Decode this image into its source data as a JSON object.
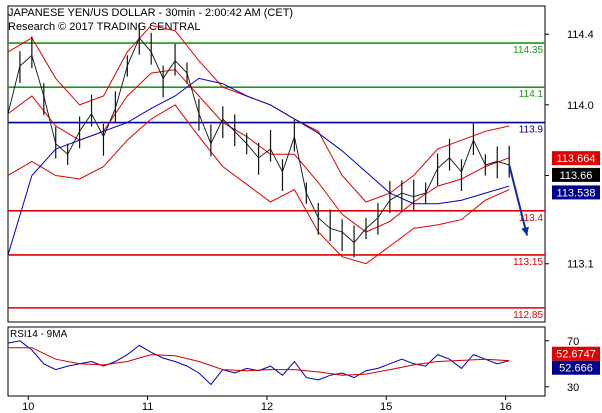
{
  "header": {
    "title": "JAPANESE YEN/US DOLLAR - 30min - 2:00:42 AM (CET)",
    "copyright": "Research © 2017 TRADING CENTRAL"
  },
  "colors": {
    "green": "#1a9a1a",
    "red": "#e00000",
    "blue": "#00008b",
    "price": "#111111",
    "band": "#e00000",
    "ma": "#0000c8",
    "rsi": "#0000b4",
    "rsi_ma": "#d00000",
    "arrow": "#0a2aa8"
  },
  "chart_data": [
    {
      "type": "line",
      "title": "",
      "description_labels": {
        "price_tag_red": "113.664",
        "price_tag_black": "113.66",
        "price_tag_blue": "113.538"
      },
      "x_ticks": [
        {
          "label": "10",
          "x": 0.17
        },
        {
          "label": "11",
          "x": 1.17
        },
        {
          "label": "12",
          "x": 2.17
        },
        {
          "label": "15",
          "x": 3.17
        },
        {
          "label": "16",
          "x": 4.17
        }
      ],
      "x_range": [
        0.0,
        4.5
      ],
      "y_ticks": [
        "114.4",
        "114.0",
        "113.6",
        "113.1"
      ],
      "y_tick_values": [
        114.4,
        114.0,
        113.6,
        113.1
      ],
      "ylim": [
        112.77,
        114.56
      ],
      "horizontal_levels": [
        {
          "label": "114.35",
          "value": 114.35,
          "color": "green"
        },
        {
          "label": "114.1",
          "value": 114.1,
          "color": "green"
        },
        {
          "label": "113.9",
          "value": 113.9,
          "color": "blue"
        },
        {
          "label": "113.4",
          "value": 113.4,
          "color": "red"
        },
        {
          "label": "113.15",
          "value": 113.15,
          "color": "red"
        },
        {
          "label": "112.85",
          "value": 112.85,
          "color": "red"
        }
      ],
      "series": [
        {
          "name": "price",
          "x": [
            0.0,
            0.1,
            0.2,
            0.3,
            0.4,
            0.5,
            0.6,
            0.7,
            0.8,
            0.9,
            1.0,
            1.1,
            1.2,
            1.3,
            1.4,
            1.5,
            1.6,
            1.7,
            1.8,
            1.9,
            2.0,
            2.1,
            2.2,
            2.3,
            2.4,
            2.5,
            2.6,
            2.7,
            2.8,
            2.9,
            3.0,
            3.1,
            3.2,
            3.3,
            3.4,
            3.5,
            3.6,
            3.7,
            3.8,
            3.9,
            4.0,
            4.1,
            4.2
          ],
          "values": [
            113.95,
            114.22,
            114.28,
            114.05,
            113.78,
            113.72,
            113.85,
            113.95,
            113.82,
            113.98,
            114.22,
            114.38,
            114.3,
            114.15,
            114.25,
            114.18,
            113.95,
            113.78,
            113.92,
            113.85,
            113.78,
            113.7,
            113.75,
            113.62,
            113.82,
            113.5,
            113.36,
            113.3,
            113.28,
            113.22,
            113.3,
            113.36,
            113.46,
            113.5,
            113.48,
            113.5,
            113.64,
            113.7,
            113.62,
            113.8,
            113.66,
            113.68,
            113.66
          ]
        },
        {
          "name": "upper_band",
          "x": [
            0.0,
            0.2,
            0.4,
            0.6,
            0.8,
            1.0,
            1.2,
            1.4,
            1.6,
            1.8,
            2.0,
            2.2,
            2.4,
            2.6,
            2.8,
            3.0,
            3.2,
            3.4,
            3.6,
            3.8,
            4.0,
            4.2
          ],
          "values": [
            114.3,
            114.38,
            114.15,
            114.0,
            114.05,
            114.3,
            114.45,
            114.42,
            114.25,
            114.1,
            114.05,
            114.0,
            113.92,
            113.85,
            113.6,
            113.45,
            113.5,
            113.6,
            113.75,
            113.8,
            113.85,
            113.88
          ]
        },
        {
          "name": "lower_band",
          "x": [
            0.0,
            0.2,
            0.4,
            0.6,
            0.8,
            1.0,
            1.2,
            1.4,
            1.6,
            1.8,
            2.0,
            2.2,
            2.4,
            2.6,
            2.8,
            3.0,
            3.2,
            3.4,
            3.6,
            3.8,
            4.0,
            4.2
          ],
          "values": [
            113.6,
            113.68,
            113.6,
            113.58,
            113.65,
            113.8,
            113.92,
            114.0,
            113.82,
            113.65,
            113.55,
            113.45,
            113.52,
            113.28,
            113.14,
            113.1,
            113.2,
            113.3,
            113.32,
            113.35,
            113.46,
            113.52
          ]
        },
        {
          "name": "middle_band",
          "x": [
            0.0,
            0.2,
            0.4,
            0.6,
            0.8,
            1.0,
            1.2,
            1.4,
            1.6,
            1.8,
            2.0,
            2.2,
            2.4,
            2.6,
            2.8,
            3.0,
            3.2,
            3.4,
            3.6,
            3.8,
            4.0,
            4.2
          ],
          "values": [
            113.95,
            114.05,
            113.88,
            113.8,
            113.85,
            114.05,
            114.18,
            114.2,
            114.05,
            113.9,
            113.82,
            113.72,
            113.72,
            113.56,
            113.38,
            113.28,
            113.34,
            113.45,
            113.54,
            113.58,
            113.65,
            113.7
          ]
        },
        {
          "name": "moving_average",
          "x": [
            0.0,
            0.2,
            0.4,
            0.6,
            0.8,
            1.0,
            1.2,
            1.4,
            1.6,
            1.8,
            2.0,
            2.2,
            2.4,
            2.6,
            2.8,
            3.0,
            3.2,
            3.4,
            3.6,
            3.8,
            4.0,
            4.2
          ],
          "values": [
            113.15,
            113.6,
            113.75,
            113.8,
            113.85,
            113.9,
            113.98,
            114.05,
            114.15,
            114.12,
            114.05,
            114.0,
            113.92,
            113.84,
            113.74,
            113.62,
            113.5,
            113.44,
            113.44,
            113.46,
            113.5,
            113.54
          ]
        }
      ],
      "arrow": {
        "from": [
          4.2,
          113.66
        ],
        "to": [
          4.35,
          113.26
        ]
      }
    },
    {
      "type": "line",
      "panel_label": "RSI14 - 9MA",
      "y_ticks": [
        "70",
        "30"
      ],
      "y_tick_values": [
        70,
        30
      ],
      "ylim": [
        22,
        82
      ],
      "value_tags": [
        {
          "label": "52.6747",
          "color": "red"
        },
        {
          "label": "52.666",
          "color": "blue"
        }
      ],
      "series": [
        {
          "name": "RSI14",
          "x": [
            0.0,
            0.1,
            0.2,
            0.3,
            0.4,
            0.5,
            0.6,
            0.7,
            0.8,
            0.9,
            1.0,
            1.1,
            1.2,
            1.3,
            1.4,
            1.5,
            1.6,
            1.7,
            1.8,
            1.9,
            2.0,
            2.1,
            2.2,
            2.3,
            2.4,
            2.5,
            2.6,
            2.7,
            2.8,
            2.9,
            3.0,
            3.1,
            3.2,
            3.3,
            3.4,
            3.5,
            3.6,
            3.7,
            3.8,
            3.9,
            4.0,
            4.1,
            4.2
          ],
          "values": [
            68,
            70,
            62,
            50,
            45,
            48,
            50,
            52,
            48,
            52,
            58,
            66,
            60,
            55,
            52,
            48,
            42,
            32,
            45,
            42,
            46,
            44,
            48,
            40,
            52,
            38,
            36,
            40,
            42,
            38,
            44,
            46,
            50,
            54,
            50,
            48,
            58,
            54,
            46,
            58,
            54,
            50,
            52.67
          ]
        },
        {
          "name": "MA9",
          "x": [
            0.0,
            0.2,
            0.4,
            0.6,
            0.8,
            1.0,
            1.2,
            1.4,
            1.6,
            1.8,
            2.0,
            2.2,
            2.4,
            2.6,
            2.8,
            3.0,
            3.2,
            3.4,
            3.6,
            3.8,
            4.0,
            4.2
          ],
          "values": [
            64,
            64,
            54,
            50,
            49,
            52,
            58,
            57,
            52,
            45,
            44,
            45,
            45,
            43,
            40,
            41,
            45,
            49,
            52,
            53,
            54,
            52.67
          ]
        }
      ]
    }
  ]
}
